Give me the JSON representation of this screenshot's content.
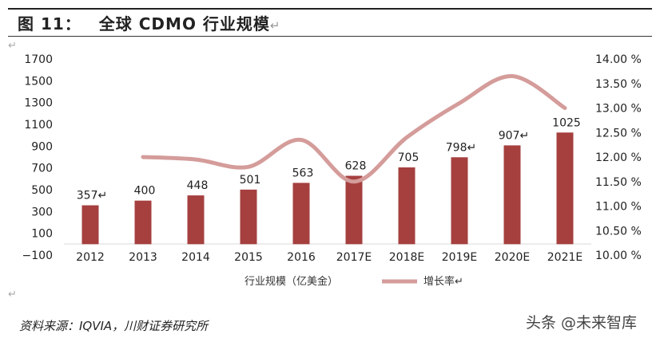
{
  "header": {
    "figure_label": "图 11：",
    "title": "全球 CDMO 行业规模",
    "return_mark": "↵"
  },
  "source": "资料来源：IQVIA，川财证券研究所",
  "watermark": "头条 @未来智库",
  "chart_data": {
    "type": "bar+line",
    "categories": [
      "2012",
      "2013",
      "2014",
      "2015",
      "2016",
      "2017E",
      "2018E",
      "2019E",
      "2020E",
      "2021E"
    ],
    "series": [
      {
        "name": "行业规模（亿美金）",
        "type": "bar",
        "axis": "left",
        "values": [
          357,
          400,
          448,
          501,
          563,
          628,
          705,
          798,
          907,
          1025
        ],
        "labels": [
          "357↵",
          "400",
          "448",
          "501",
          "563",
          "628",
          "705",
          "798↵",
          "907↵",
          "1025"
        ]
      },
      {
        "name": "增长率↵",
        "type": "line",
        "axis": "right",
        "values": [
          null,
          12.0,
          11.95,
          11.8,
          12.35,
          11.5,
          12.4,
          13.1,
          13.65,
          13.0
        ]
      }
    ],
    "left_axis": {
      "ticks": [
        -100,
        100,
        300,
        500,
        700,
        900,
        1100,
        1300,
        1500,
        1700
      ],
      "tick_labels": [
        "−100",
        "100",
        "300",
        "500",
        "700",
        "900",
        "1100",
        "1300",
        "1500",
        "1700"
      ],
      "range": [
        -100,
        1700
      ]
    },
    "right_axis": {
      "ticks": [
        10.0,
        10.5,
        11.0,
        11.5,
        12.0,
        12.5,
        13.0,
        13.5,
        14.0
      ],
      "tick_labels": [
        "10.00 %",
        "10.50 %",
        "11.00 %",
        "11.50 %",
        "12.00 %",
        "12.50 %",
        "13.00 %",
        "13.50 %",
        "14.00 %"
      ],
      "range": [
        10.0,
        14.0
      ]
    },
    "legend_position": "bottom",
    "grid": false,
    "colors": {
      "bar": "#a5403f",
      "line": "#d49c9a"
    }
  }
}
